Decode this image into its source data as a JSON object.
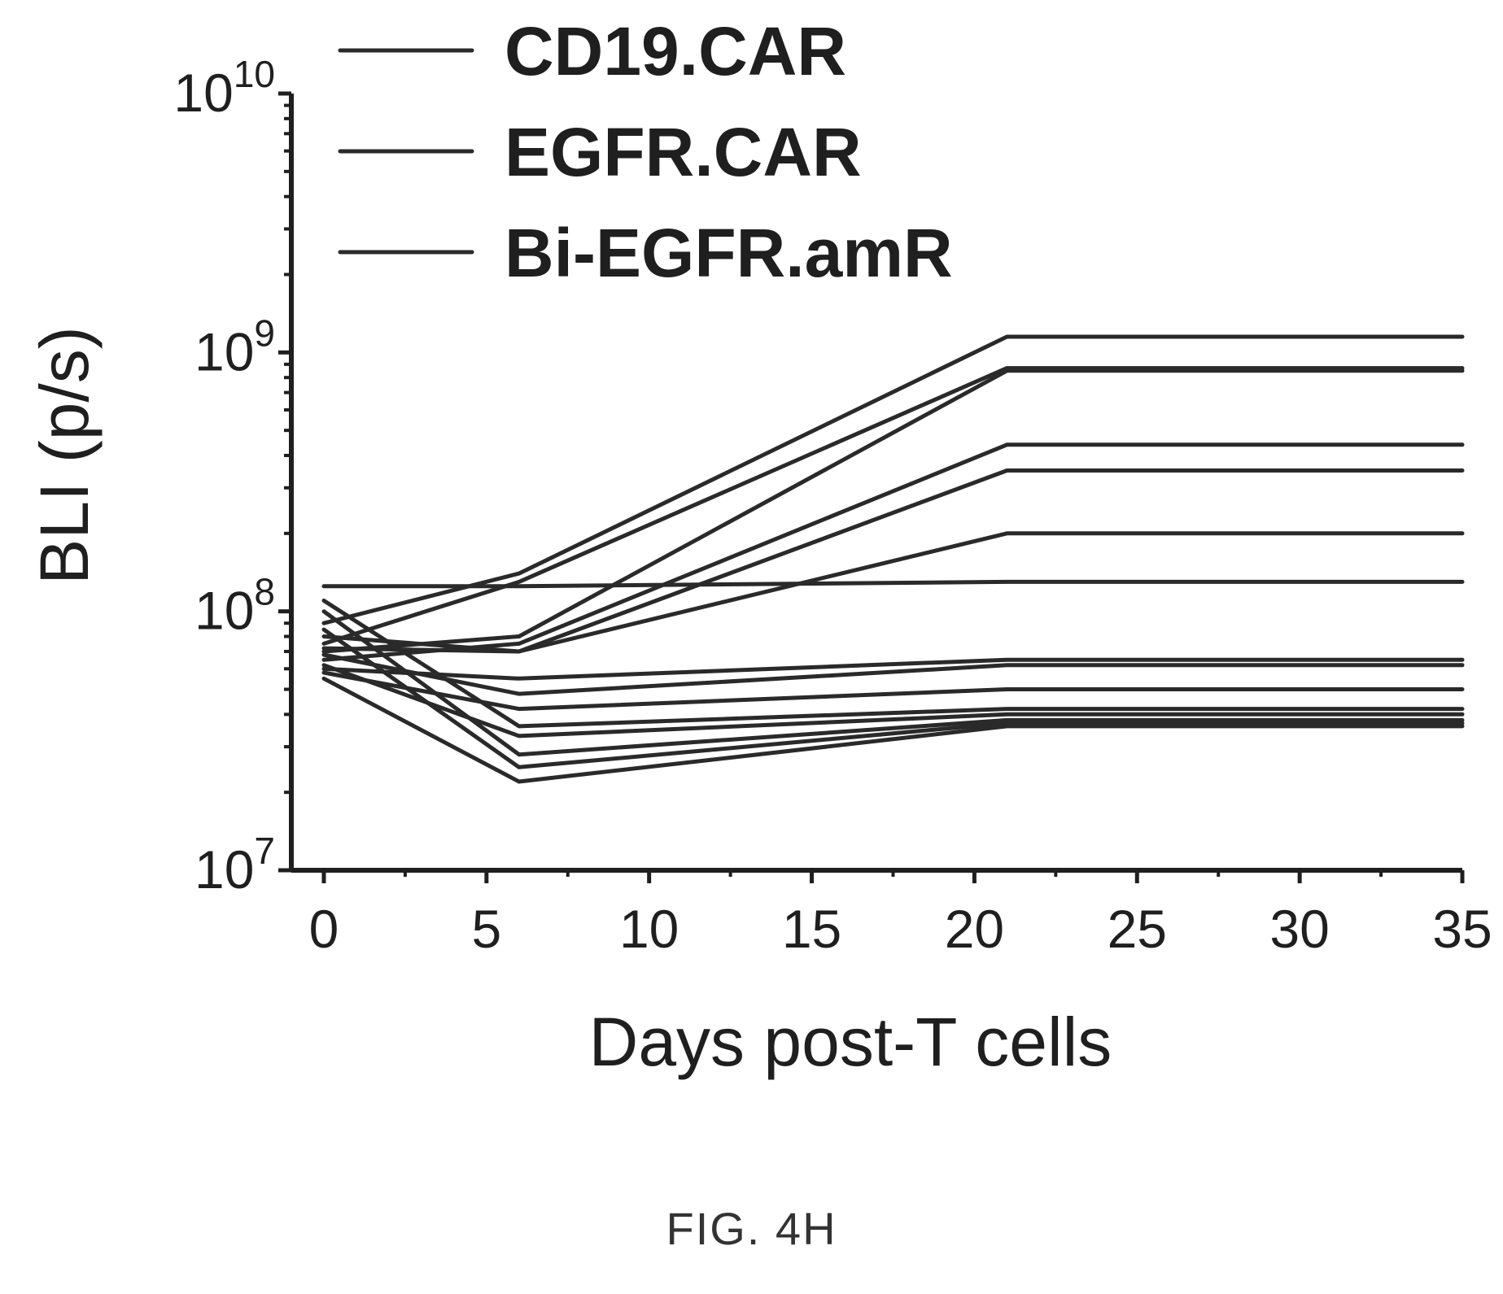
{
  "figure_caption": "FIG. 4H",
  "chart_data": {
    "type": "line",
    "xlabel": "Days post-T cells",
    "ylabel": "BLI (p/s)",
    "x_ticks": [
      0,
      5,
      10,
      15,
      20,
      25,
      30,
      35
    ],
    "y_scale": "log",
    "y_ticks": [
      {
        "value": 10000000,
        "base": "10",
        "exp": "7"
      },
      {
        "value": 100000000,
        "base": "10",
        "exp": "8"
      },
      {
        "value": 1000000000,
        "base": "10",
        "exp": "9"
      },
      {
        "value": 10000000000,
        "base": "10",
        "exp": "10"
      }
    ],
    "xlim": [
      -1,
      35
    ],
    "ylim": [
      10000000,
      10000000000
    ],
    "grid": false,
    "legend_position": "top",
    "legend": [
      "CD19.CAR",
      "EGFR.CAR",
      "Bi-EGFR.amR"
    ],
    "x": [
      0,
      6,
      21,
      35
    ],
    "series": [
      {
        "values": [
          90000000,
          140000000,
          1150000000,
          1150000000
        ]
      },
      {
        "values": [
          75000000,
          130000000,
          870000000,
          870000000
        ]
      },
      {
        "values": [
          70000000,
          80000000,
          850000000,
          850000000
        ]
      },
      {
        "values": [
          65000000,
          75000000,
          440000000,
          440000000
        ]
      },
      {
        "values": [
          80000000,
          70000000,
          350000000,
          350000000
        ]
      },
      {
        "values": [
          72000000,
          70000000,
          200000000,
          200000000
        ]
      },
      {
        "values": [
          125000000,
          125000000,
          130000000,
          130000000
        ]
      },
      {
        "values": [
          60000000,
          55000000,
          65000000,
          65000000
        ]
      },
      {
        "values": [
          68000000,
          48000000,
          62000000,
          62000000
        ]
      },
      {
        "values": [
          58000000,
          42000000,
          50000000,
          50000000
        ]
      },
      {
        "values": [
          110000000,
          36000000,
          42000000,
          42000000
        ]
      },
      {
        "values": [
          62000000,
          33000000,
          40000000,
          40000000
        ]
      },
      {
        "values": [
          100000000,
          28000000,
          38000000,
          38000000
        ]
      },
      {
        "values": [
          85000000,
          25000000,
          37000000,
          37000000
        ]
      },
      {
        "values": [
          55000000,
          22000000,
          36000000,
          36000000
        ]
      }
    ]
  }
}
